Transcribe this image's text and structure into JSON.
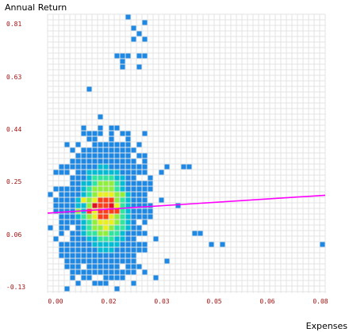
{
  "chart_data": {
    "type": "heatmap",
    "title": "",
    "xlabel": "Expenses",
    "ylabel": "Annual Return",
    "xlim": [
      0.0,
      0.1
    ],
    "ylim": [
      -0.13,
      0.81
    ],
    "x_tick_labels": [
      "0.00",
      "0.02",
      "0.03",
      "0.05",
      "0.06",
      "0.08"
    ],
    "y_tick_labels": [
      "-0.13",
      "0.06",
      "0.25",
      "0.44",
      "0.63",
      "0.81"
    ],
    "grid": true,
    "density_colors": [
      "#1e88e5",
      "#00bcd4",
      "#2ee6a0",
      "#8ef03a",
      "#eaf01a",
      "#ff3f1a",
      "#e01020"
    ],
    "trend_line": {
      "x": [
        0.0,
        0.1
      ],
      "y": [
        0.14,
        0.2
      ],
      "color": "#ff00ff"
    },
    "density_core": [
      {
        "x": 0.018,
        "y": 0.16,
        "level": 6
      },
      {
        "x": 0.023,
        "y": 0.17,
        "level": 6
      },
      {
        "x": 0.015,
        "y": 0.15,
        "level": 5
      },
      {
        "x": 0.025,
        "y": 0.14,
        "level": 5
      },
      {
        "x": 0.02,
        "y": 0.12,
        "level": 4
      },
      {
        "x": 0.013,
        "y": 0.18,
        "level": 4
      },
      {
        "x": 0.027,
        "y": 0.2,
        "level": 3
      },
      {
        "x": 0.01,
        "y": 0.14,
        "level": 3
      }
    ],
    "outliers": [
      {
        "x": 0.0295,
        "y": 0.795
      },
      {
        "x": 0.0345,
        "y": 0.78
      },
      {
        "x": 0.0305,
        "y": 0.755
      },
      {
        "x": 0.0335,
        "y": 0.745
      },
      {
        "x": 0.0355,
        "y": 0.727
      },
      {
        "x": 0.03,
        "y": 0.735
      },
      {
        "x": 0.024,
        "y": 0.675
      },
      {
        "x": 0.026,
        "y": 0.665
      },
      {
        "x": 0.029,
        "y": 0.668
      },
      {
        "x": 0.032,
        "y": 0.675
      },
      {
        "x": 0.034,
        "y": 0.668
      },
      {
        "x": 0.0265,
        "y": 0.645
      },
      {
        "x": 0.0275,
        "y": 0.636
      },
      {
        "x": 0.0335,
        "y": 0.637
      },
      {
        "x": 0.0155,
        "y": 0.555
      },
      {
        "x": 0.049,
        "y": 0.298
      },
      {
        "x": 0.051,
        "y": 0.298
      },
      {
        "x": 0.042,
        "y": 0.29
      },
      {
        "x": 0.0535,
        "y": 0.08
      },
      {
        "x": 0.0545,
        "y": 0.066
      },
      {
        "x": 0.058,
        "y": 0.035
      },
      {
        "x": 0.062,
        "y": 0.035
      },
      {
        "x": 0.0995,
        "y": 0.038
      },
      {
        "x": 0.046,
        "y": 0.158
      },
      {
        "x": 0.0415,
        "y": 0.185
      },
      {
        "x": 0.042,
        "y": -0.023
      },
      {
        "x": 0.0395,
        "y": -0.078
      },
      {
        "x": 0.03,
        "y": -0.092
      },
      {
        "x": 0.02,
        "y": -0.092
      }
    ]
  }
}
